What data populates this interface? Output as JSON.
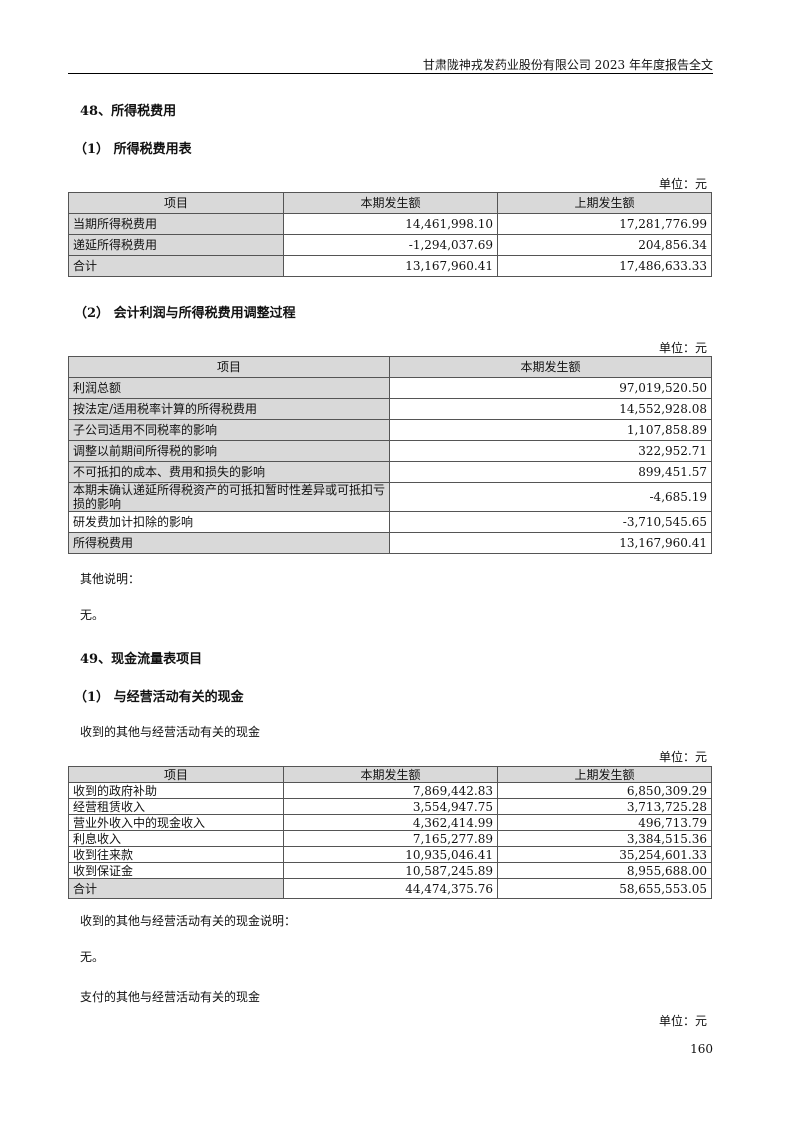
{
  "header": "甘肃陇神戎发药业股份有限公司 2023 年年度报告全文",
  "s48": "48、所得税费用",
  "s48_1": "（1）  所得税费用表",
  "unit": "单位：元",
  "t1": {
    "headers": [
      "项目",
      "本期发生额",
      "上期发生额"
    ],
    "rows": [
      [
        "当期所得税费用",
        "14,461,998.10",
        "17,281,776.99"
      ],
      [
        "递延所得税费用",
        "-1,294,037.69",
        "204,856.34"
      ],
      [
        "合计",
        "13,167,960.41",
        "17,486,633.33"
      ]
    ]
  },
  "s48_2": "（2）  会计利润与所得税费用调整过程",
  "t2": {
    "headers": [
      "项目",
      "本期发生额"
    ],
    "rows": [
      [
        "利润总额",
        "97,019,520.50"
      ],
      [
        "按法定/适用税率计算的所得税费用",
        "14,552,928.08"
      ],
      [
        "子公司适用不同税率的影响",
        "1,107,858.89"
      ],
      [
        "调整以前期间所得税的影响",
        "322,952.71"
      ],
      [
        "不可抵扣的成本、费用和损失的影响",
        "899,451.57"
      ],
      [
        "本期未确认递延所得税资产的可抵扣暂时性差异或可抵扣亏损的影响",
        "-4,685.19"
      ],
      [
        "研发费加计扣除的影响",
        "-3,710,545.65"
      ],
      [
        "所得税费用",
        "13,167,960.41"
      ]
    ]
  },
  "other_note": "其他说明：",
  "none1": "无。",
  "s49": "49、现金流量表项目",
  "s49_1": "（1）  与经营活动有关的现金",
  "recv_title": "收到的其他与经营活动有关的现金",
  "t3": {
    "headers": [
      "项目",
      "本期发生额",
      "上期发生额"
    ],
    "rows": [
      [
        "收到的政府补助",
        "7,869,442.83",
        "6,850,309.29"
      ],
      [
        "经营租赁收入",
        "3,554,947.75",
        "3,713,725.28"
      ],
      [
        "营业外收入中的现金收入",
        "4,362,414.99",
        "496,713.79"
      ],
      [
        "利息收入",
        "7,165,277.89",
        "3,384,515.36"
      ],
      [
        "收到往来款",
        "10,935,046.41",
        "35,254,601.33"
      ],
      [
        "收到保证金",
        "10,587,245.89",
        "8,955,688.00"
      ],
      [
        "合计",
        "44,474,375.76",
        "58,655,553.05"
      ]
    ]
  },
  "recv_note": "收到的其他与经营活动有关的现金说明：",
  "none2": "无。",
  "paid_title": "支付的其他与经营活动有关的现金",
  "page_number": "160"
}
